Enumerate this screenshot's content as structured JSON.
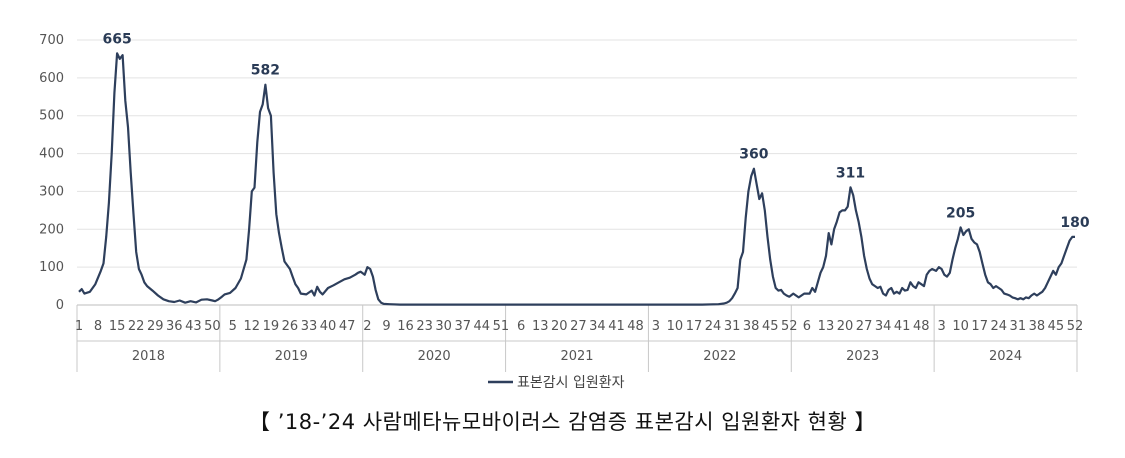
{
  "chart_data": {
    "type": "line",
    "ylim": [
      0,
      700
    ],
    "yticks": [
      0,
      100,
      200,
      300,
      400,
      500,
      600,
      700
    ],
    "years": [
      "2018",
      "2019",
      "2020",
      "2021",
      "2022",
      "2023",
      "2024"
    ],
    "week_ticks": [
      [
        "1",
        "8",
        "15",
        "22",
        "29",
        "36",
        "43",
        "50"
      ],
      [
        "5",
        "12",
        "19",
        "26",
        "33",
        "40",
        "47"
      ],
      [
        "2",
        "9",
        "16",
        "23",
        "30",
        "37",
        "44",
        "51"
      ],
      [
        "6",
        "13",
        "20",
        "27",
        "34",
        "41",
        "48"
      ],
      [
        "3",
        "10",
        "17",
        "24",
        "31",
        "38",
        "45",
        "52"
      ],
      [
        "6",
        "13",
        "20",
        "27",
        "34",
        "41",
        "48"
      ],
      [
        "3",
        "10",
        "17",
        "24",
        "31",
        "38",
        "45",
        "52"
      ]
    ],
    "week_tick_positions": [
      [
        1,
        8,
        15,
        22,
        29,
        36,
        43,
        50
      ],
      [
        5,
        12,
        19,
        26,
        33,
        40,
        47
      ],
      [
        2,
        9,
        16,
        23,
        30,
        37,
        44,
        51
      ],
      [
        6,
        13,
        20,
        27,
        34,
        41,
        48
      ],
      [
        3,
        10,
        17,
        24,
        31,
        38,
        45,
        52
      ],
      [
        6,
        13,
        20,
        27,
        34,
        41,
        48
      ],
      [
        3,
        10,
        17,
        24,
        31,
        38,
        45,
        52
      ]
    ],
    "series": [
      {
        "name": "표본감시 입원환자",
        "color": "#2e3f5c",
        "points": [
          [
            "2018",
            1,
            35
          ],
          [
            "2018",
            2,
            42
          ],
          [
            "2018",
            3,
            30
          ],
          [
            "2018",
            5,
            35
          ],
          [
            "2018",
            7,
            55
          ],
          [
            "2018",
            9,
            90
          ],
          [
            "2018",
            10,
            110
          ],
          [
            "2018",
            11,
            180
          ],
          [
            "2018",
            12,
            270
          ],
          [
            "2018",
            13,
            400
          ],
          [
            "2018",
            14,
            560
          ],
          [
            "2018",
            15,
            665
          ],
          [
            "2018",
            16,
            650
          ],
          [
            "2018",
            17,
            660
          ],
          [
            "2018",
            18,
            540
          ],
          [
            "2018",
            19,
            470
          ],
          [
            "2018",
            20,
            350
          ],
          [
            "2018",
            21,
            240
          ],
          [
            "2018",
            22,
            140
          ],
          [
            "2018",
            23,
            95
          ],
          [
            "2018",
            24,
            80
          ],
          [
            "2018",
            25,
            60
          ],
          [
            "2018",
            26,
            50
          ],
          [
            "2018",
            28,
            38
          ],
          [
            "2018",
            30,
            25
          ],
          [
            "2018",
            32,
            15
          ],
          [
            "2018",
            34,
            10
          ],
          [
            "2018",
            36,
            8
          ],
          [
            "2018",
            38,
            12
          ],
          [
            "2018",
            40,
            6
          ],
          [
            "2018",
            42,
            10
          ],
          [
            "2018",
            44,
            7
          ],
          [
            "2018",
            46,
            14
          ],
          [
            "2018",
            48,
            15
          ],
          [
            "2018",
            50,
            12
          ],
          [
            "2018",
            51,
            10
          ],
          [
            "2018",
            52,
            14
          ],
          [
            "2019",
            1,
            22
          ],
          [
            "2019",
            2,
            28
          ],
          [
            "2019",
            4,
            32
          ],
          [
            "2019",
            6,
            45
          ],
          [
            "2019",
            8,
            70
          ],
          [
            "2019",
            10,
            120
          ],
          [
            "2019",
            11,
            200
          ],
          [
            "2019",
            12,
            300
          ],
          [
            "2019",
            13,
            310
          ],
          [
            "2019",
            14,
            430
          ],
          [
            "2019",
            15,
            510
          ],
          [
            "2019",
            16,
            530
          ],
          [
            "2019",
            17,
            582
          ],
          [
            "2019",
            18,
            520
          ],
          [
            "2019",
            19,
            500
          ],
          [
            "2019",
            20,
            350
          ],
          [
            "2019",
            21,
            240
          ],
          [
            "2019",
            22,
            190
          ],
          [
            "2019",
            23,
            150
          ],
          [
            "2019",
            24,
            115
          ],
          [
            "2019",
            26,
            95
          ],
          [
            "2019",
            27,
            75
          ],
          [
            "2019",
            28,
            55
          ],
          [
            "2019",
            29,
            45
          ],
          [
            "2019",
            30,
            30
          ],
          [
            "2019",
            32,
            28
          ],
          [
            "2019",
            34,
            38
          ],
          [
            "2019",
            35,
            25
          ],
          [
            "2019",
            36,
            48
          ],
          [
            "2019",
            37,
            35
          ],
          [
            "2019",
            38,
            28
          ],
          [
            "2019",
            40,
            45
          ],
          [
            "2019",
            42,
            52
          ],
          [
            "2019",
            44,
            60
          ],
          [
            "2019",
            46,
            68
          ],
          [
            "2019",
            48,
            72
          ],
          [
            "2019",
            50,
            80
          ],
          [
            "2019",
            51,
            85
          ],
          [
            "2019",
            52,
            88
          ],
          [
            "2020",
            1,
            80
          ],
          [
            "2020",
            2,
            100
          ],
          [
            "2020",
            3,
            95
          ],
          [
            "2020",
            4,
            75
          ],
          [
            "2020",
            5,
            40
          ],
          [
            "2020",
            6,
            15
          ],
          [
            "2020",
            7,
            6
          ],
          [
            "2020",
            8,
            3
          ],
          [
            "2020",
            10,
            2
          ],
          [
            "2020",
            14,
            1
          ],
          [
            "2020",
            20,
            1
          ],
          [
            "2020",
            30,
            1
          ],
          [
            "2020",
            40,
            1
          ],
          [
            "2020",
            52,
            1
          ],
          [
            "2021",
            1,
            1
          ],
          [
            "2021",
            20,
            1
          ],
          [
            "2021",
            40,
            1
          ],
          [
            "2021",
            52,
            1
          ],
          [
            "2022",
            1,
            1
          ],
          [
            "2022",
            20,
            1
          ],
          [
            "2022",
            26,
            2
          ],
          [
            "2022",
            28,
            4
          ],
          [
            "2022",
            29,
            6
          ],
          [
            "2022",
            30,
            10
          ],
          [
            "2022",
            31,
            18
          ],
          [
            "2022",
            32,
            30
          ],
          [
            "2022",
            33,
            45
          ],
          [
            "2022",
            34,
            120
          ],
          [
            "2022",
            35,
            140
          ],
          [
            "2022",
            36,
            230
          ],
          [
            "2022",
            37,
            300
          ],
          [
            "2022",
            38,
            340
          ],
          [
            "2022",
            39,
            360
          ],
          [
            "2022",
            40,
            320
          ],
          [
            "2022",
            41,
            280
          ],
          [
            "2022",
            42,
            295
          ],
          [
            "2022",
            43,
            250
          ],
          [
            "2022",
            44,
            180
          ],
          [
            "2022",
            45,
            120
          ],
          [
            "2022",
            46,
            75
          ],
          [
            "2022",
            47,
            45
          ],
          [
            "2022",
            48,
            38
          ],
          [
            "2022",
            49,
            40
          ],
          [
            "2022",
            50,
            30
          ],
          [
            "2022",
            51,
            25
          ],
          [
            "2022",
            52,
            22
          ],
          [
            "2023",
            1,
            30
          ],
          [
            "2023",
            2,
            25
          ],
          [
            "2023",
            3,
            20
          ],
          [
            "2023",
            5,
            30
          ],
          [
            "2023",
            7,
            30
          ],
          [
            "2023",
            8,
            45
          ],
          [
            "2023",
            9,
            35
          ],
          [
            "2023",
            10,
            60
          ],
          [
            "2023",
            11,
            85
          ],
          [
            "2023",
            12,
            100
          ],
          [
            "2023",
            13,
            130
          ],
          [
            "2023",
            14,
            190
          ],
          [
            "2023",
            15,
            160
          ],
          [
            "2023",
            16,
            200
          ],
          [
            "2023",
            17,
            220
          ],
          [
            "2023",
            18,
            245
          ],
          [
            "2023",
            19,
            250
          ],
          [
            "2023",
            20,
            250
          ],
          [
            "2023",
            21,
            260
          ],
          [
            "2023",
            22,
            311
          ],
          [
            "2023",
            23,
            290
          ],
          [
            "2023",
            24,
            250
          ],
          [
            "2023",
            25,
            220
          ],
          [
            "2023",
            26,
            180
          ],
          [
            "2023",
            27,
            130
          ],
          [
            "2023",
            28,
            95
          ],
          [
            "2023",
            29,
            70
          ],
          [
            "2023",
            30,
            55
          ],
          [
            "2023",
            31,
            50
          ],
          [
            "2023",
            32,
            45
          ],
          [
            "2023",
            33,
            48
          ],
          [
            "2023",
            34,
            30
          ],
          [
            "2023",
            35,
            25
          ],
          [
            "2023",
            36,
            40
          ],
          [
            "2023",
            37,
            45
          ],
          [
            "2023",
            38,
            30
          ],
          [
            "2023",
            39,
            35
          ],
          [
            "2023",
            40,
            30
          ],
          [
            "2023",
            41,
            45
          ],
          [
            "2023",
            42,
            38
          ],
          [
            "2023",
            43,
            40
          ],
          [
            "2023",
            44,
            60
          ],
          [
            "2023",
            45,
            50
          ],
          [
            "2023",
            46,
            45
          ],
          [
            "2023",
            47,
            60
          ],
          [
            "2023",
            48,
            55
          ],
          [
            "2023",
            49,
            50
          ],
          [
            "2023",
            50,
            80
          ],
          [
            "2023",
            51,
            90
          ],
          [
            "2023",
            52,
            95
          ],
          [
            "2024",
            1,
            90
          ],
          [
            "2024",
            2,
            100
          ],
          [
            "2024",
            3,
            95
          ],
          [
            "2024",
            4,
            80
          ],
          [
            "2024",
            5,
            75
          ],
          [
            "2024",
            6,
            85
          ],
          [
            "2024",
            7,
            120
          ],
          [
            "2024",
            8,
            150
          ],
          [
            "2024",
            9,
            175
          ],
          [
            "2024",
            10,
            205
          ],
          [
            "2024",
            11,
            185
          ],
          [
            "2024",
            12,
            195
          ],
          [
            "2024",
            13,
            200
          ],
          [
            "2024",
            14,
            175
          ],
          [
            "2024",
            15,
            165
          ],
          [
            "2024",
            16,
            160
          ],
          [
            "2024",
            17,
            140
          ],
          [
            "2024",
            18,
            110
          ],
          [
            "2024",
            19,
            80
          ],
          [
            "2024",
            20,
            60
          ],
          [
            "2024",
            21,
            55
          ],
          [
            "2024",
            22,
            45
          ],
          [
            "2024",
            23,
            50
          ],
          [
            "2024",
            24,
            45
          ],
          [
            "2024",
            25,
            40
          ],
          [
            "2024",
            26,
            30
          ],
          [
            "2024",
            27,
            28
          ],
          [
            "2024",
            28,
            25
          ],
          [
            "2024",
            29,
            20
          ],
          [
            "2024",
            30,
            18
          ],
          [
            "2024",
            31,
            15
          ],
          [
            "2024",
            32,
            18
          ],
          [
            "2024",
            33,
            15
          ],
          [
            "2024",
            34,
            20
          ],
          [
            "2024",
            35,
            18
          ],
          [
            "2024",
            36,
            25
          ],
          [
            "2024",
            37,
            30
          ],
          [
            "2024",
            38,
            25
          ],
          [
            "2024",
            39,
            30
          ],
          [
            "2024",
            40,
            35
          ],
          [
            "2024",
            41,
            45
          ],
          [
            "2024",
            42,
            60
          ],
          [
            "2024",
            43,
            75
          ],
          [
            "2024",
            44,
            90
          ],
          [
            "2024",
            45,
            80
          ],
          [
            "2024",
            46,
            100
          ],
          [
            "2024",
            47,
            110
          ],
          [
            "2024",
            48,
            130
          ],
          [
            "2024",
            49,
            150
          ],
          [
            "2024",
            50,
            170
          ],
          [
            "2024",
            51,
            180
          ],
          [
            "2024",
            52,
            180
          ]
        ]
      }
    ],
    "annotations": [
      {
        "text": "665",
        "year": "2018",
        "week": 15,
        "value": 665
      },
      {
        "text": "582",
        "year": "2019",
        "week": 17,
        "value": 582
      },
      {
        "text": "360",
        "year": "2022",
        "week": 39,
        "value": 360
      },
      {
        "text": "311",
        "year": "2023",
        "week": 22,
        "value": 311
      },
      {
        "text": "205",
        "year": "2024",
        "week": 10,
        "value": 205
      },
      {
        "text": "180",
        "year": "2024",
        "week": 52,
        "value": 180
      }
    ],
    "legend": {
      "label": "표본감시 입원환자",
      "position": "bottom-center"
    },
    "grid": true
  },
  "caption": "【 ’18-’24 사람메타뉴모바이러스 감염증 표본감시 입원환자 현황 】"
}
